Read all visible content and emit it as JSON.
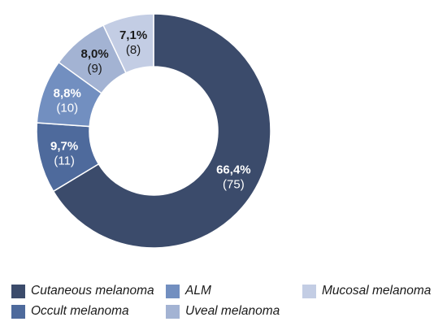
{
  "chart_data": {
    "type": "pie",
    "donut": true,
    "title": "",
    "slices": [
      {
        "name": "Cutaneous melanoma",
        "percent_label": "66,4%",
        "count_label": "(75)",
        "value": 75,
        "color": "#3b4b6b",
        "label_color": "#ffffff"
      },
      {
        "name": "Occult melanoma",
        "percent_label": "9,7%",
        "count_label": "(11)",
        "value": 11,
        "color": "#4e6a9c",
        "label_color": "#ffffff"
      },
      {
        "name": "ALM",
        "percent_label": "8,8%",
        "count_label": "(10)",
        "value": 10,
        "color": "#728fc0",
        "label_color": "#ffffff"
      },
      {
        "name": "Uveal melanoma",
        "percent_label": "8,0%",
        "count_label": "(9)",
        "value": 9,
        "color": "#a3b3d3",
        "label_color": "#1a1a1a"
      },
      {
        "name": "Mucosal melanoma",
        "percent_label": "7,1%",
        "count_label": "(8)",
        "value": 8,
        "color": "#c3cde4",
        "label_color": "#1a1a1a"
      }
    ],
    "legend_position": "bottom"
  }
}
